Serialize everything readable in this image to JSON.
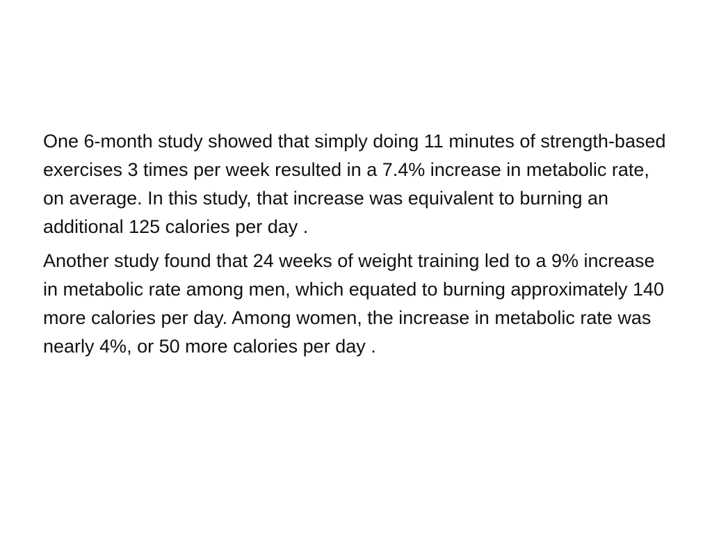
{
  "slide": {
    "paragraphs": [
      "One 6-month study showed that simply doing 11 minutes of strength-based exercises 3 times per week resulted in a 7.4% increase in metabolic rate, on average. In this study, that increase was equivalent to burning an additional 125 calories per day .",
      "Another study found that 24 weeks of weight training led to a 9% increase in metabolic rate among men, which equated to burning approximately 140 more calories per day. Among women, the increase in metabolic rate was nearly 4%, or 50 more calories per day ."
    ]
  }
}
